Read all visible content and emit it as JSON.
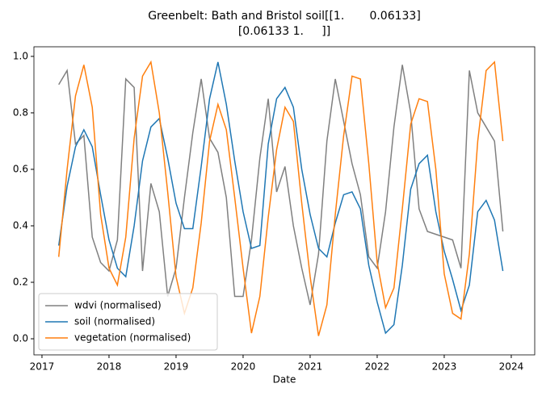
{
  "chart_data": {
    "type": "line",
    "title": [
      "Greenbelt: Bath and Bristol soil[[1.       0.06133]",
      "[0.06133 1.     ]]"
    ],
    "xlabel": "Date",
    "x": [
      2017.25,
      2017.375,
      2017.5,
      2017.625,
      2017.75,
      2017.875,
      2018.0,
      2018.125,
      2018.25,
      2018.375,
      2018.5,
      2018.625,
      2018.75,
      2018.875,
      2019.0,
      2019.125,
      2019.25,
      2019.375,
      2019.5,
      2019.625,
      2019.75,
      2019.875,
      2020.0,
      2020.125,
      2020.25,
      2020.375,
      2020.5,
      2020.625,
      2020.75,
      2020.875,
      2021.0,
      2021.125,
      2021.25,
      2021.375,
      2021.5,
      2021.625,
      2021.75,
      2021.875,
      2022.0,
      2022.125,
      2022.25,
      2022.375,
      2022.5,
      2022.625,
      2022.75,
      2022.875,
      2023.0,
      2023.125,
      2023.25,
      2023.375,
      2023.5,
      2023.625,
      2023.75,
      2023.875
    ],
    "series": [
      {
        "name": "wdvi (normalised)",
        "color": "#808080",
        "values": [
          0.9,
          0.95,
          0.69,
          0.72,
          0.36,
          0.27,
          0.24,
          0.35,
          0.92,
          0.89,
          0.24,
          0.55,
          0.45,
          0.15,
          0.25,
          0.5,
          0.73,
          0.92,
          0.71,
          0.66,
          0.5,
          0.15,
          0.15,
          0.35,
          0.64,
          0.85,
          0.52,
          0.61,
          0.4,
          0.25,
          0.12,
          0.3,
          0.7,
          0.92,
          0.77,
          0.62,
          0.51,
          0.29,
          0.25,
          0.45,
          0.75,
          0.97,
          0.8,
          0.46,
          0.38,
          0.37,
          0.36,
          0.35,
          0.25,
          0.95,
          0.8,
          0.75,
          0.7,
          0.38
        ]
      },
      {
        "name": "soil (normalised)",
        "color": "#1f77b4",
        "values": [
          0.33,
          0.54,
          0.68,
          0.74,
          0.68,
          0.51,
          0.35,
          0.25,
          0.22,
          0.4,
          0.63,
          0.75,
          0.78,
          0.64,
          0.48,
          0.39,
          0.39,
          0.61,
          0.85,
          0.98,
          0.83,
          0.63,
          0.45,
          0.32,
          0.33,
          0.69,
          0.85,
          0.89,
          0.82,
          0.6,
          0.44,
          0.32,
          0.29,
          0.41,
          0.51,
          0.52,
          0.46,
          0.26,
          0.13,
          0.02,
          0.05,
          0.26,
          0.53,
          0.62,
          0.65,
          0.45,
          0.31,
          0.21,
          0.1,
          0.19,
          0.45,
          0.49,
          0.42,
          0.24
        ]
      },
      {
        "name": "vegetation (normalised)",
        "color": "#ff7f0e",
        "values": [
          0.29,
          0.6,
          0.86,
          0.97,
          0.82,
          0.44,
          0.25,
          0.19,
          0.36,
          0.71,
          0.93,
          0.98,
          0.8,
          0.52,
          0.22,
          0.09,
          0.18,
          0.41,
          0.7,
          0.83,
          0.74,
          0.5,
          0.25,
          0.02,
          0.15,
          0.43,
          0.67,
          0.82,
          0.77,
          0.48,
          0.22,
          0.01,
          0.12,
          0.44,
          0.72,
          0.93,
          0.92,
          0.62,
          0.27,
          0.11,
          0.18,
          0.46,
          0.76,
          0.85,
          0.84,
          0.6,
          0.23,
          0.09,
          0.07,
          0.3,
          0.7,
          0.95,
          0.98,
          0.7
        ]
      }
    ],
    "xlim": [
      2016.88,
      2024.35
    ],
    "xticks": [
      2017,
      2018,
      2019,
      2020,
      2021,
      2022,
      2023,
      2024
    ],
    "ylim": [
      -0.057,
      1.034
    ],
    "yticks": [
      {
        "value": 0,
        "label": "0.0"
      },
      0.2,
      0.4,
      0.6,
      0.8,
      {
        "value": 1,
        "label": "1.0"
      }
    ],
    "legend": "lower left"
  }
}
